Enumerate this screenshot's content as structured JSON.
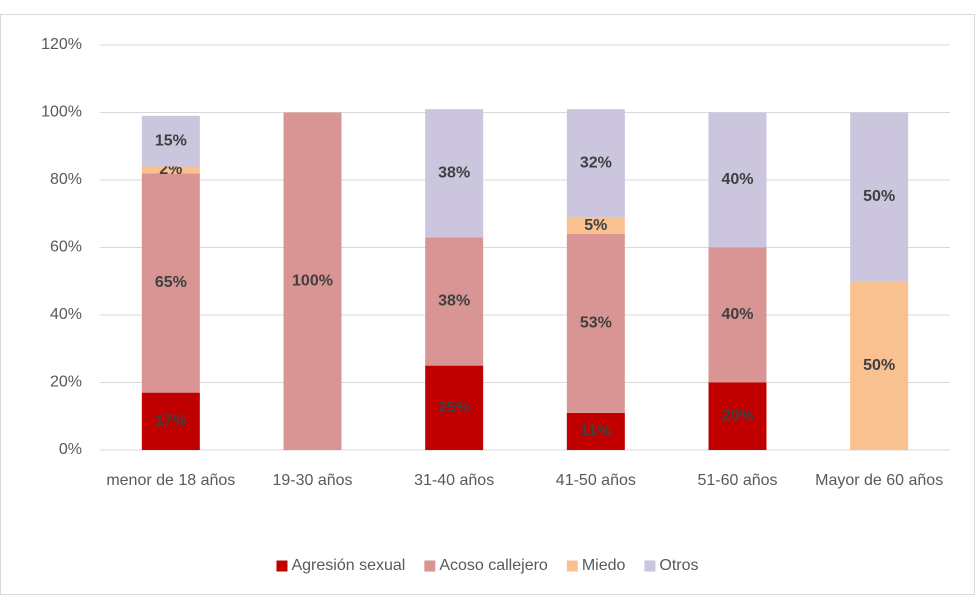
{
  "chart_data": {
    "type": "stacked_bar",
    "categories": [
      "menor de 18 años",
      "19-30 años",
      "31-40 años",
      "41-50 años",
      "51-60 años",
      "Mayor de 60 años"
    ],
    "series": [
      {
        "name": "Agresión sexual",
        "color": "#c00000",
        "values": [
          17,
          0,
          25,
          11,
          20,
          0
        ],
        "value_labels": [
          "17%",
          null,
          "25%",
          "11%",
          "20%",
          null
        ]
      },
      {
        "name": "Acoso callejero",
        "color": "#d99594",
        "values": [
          65,
          100,
          38,
          53,
          40,
          0
        ],
        "value_labels": [
          "65%",
          "100%",
          "38%",
          "53%",
          "40%",
          null
        ]
      },
      {
        "name": "Miedo",
        "color": "#f9c18f",
        "values": [
          2,
          0,
          0,
          5,
          0,
          50
        ],
        "value_labels": [
          "2%",
          null,
          null,
          "5%",
          null,
          "50%"
        ]
      },
      {
        "name": "Otros",
        "color": "#cbc5de",
        "values": [
          15,
          0,
          38,
          32,
          40,
          50
        ],
        "value_labels": [
          "15%",
          null,
          "38%",
          "32%",
          "40%",
          "50%"
        ]
      }
    ],
    "ylim": [
      0,
      120
    ],
    "yticks": [
      {
        "value": 0,
        "label": "0%"
      },
      {
        "value": 20,
        "label": "20%"
      },
      {
        "value": 40,
        "label": "40%"
      },
      {
        "value": 60,
        "label": "60%"
      },
      {
        "value": 80,
        "label": "80%"
      },
      {
        "value": 100,
        "label": "100%"
      },
      {
        "value": 120,
        "label": "120%"
      }
    ],
    "grid": true,
    "legend": "bottom"
  }
}
